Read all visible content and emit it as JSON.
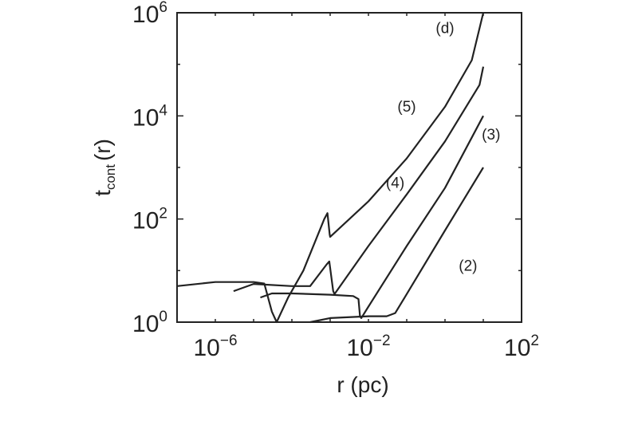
{
  "chart_data": {
    "type": "line",
    "xscale": "log",
    "yscale": "log",
    "xlim": [
      1e-07,
      100
    ],
    "ylim": [
      1,
      1000000
    ],
    "xlabel": "r (pc)",
    "ylabel": {
      "main": "t",
      "sub": "cont",
      "tail": "(r)"
    },
    "x_ticks": [
      {
        "base": "10",
        "exp": "−6",
        "value": 1e-06
      },
      {
        "base": "10",
        "exp": "−2",
        "value": 0.01
      },
      {
        "base": "10",
        "exp": "2",
        "value": 100
      }
    ],
    "y_ticks": [
      {
        "base": "10",
        "exp": "0",
        "value": 1
      },
      {
        "base": "10",
        "exp": "2",
        "value": 100
      },
      {
        "base": "10",
        "exp": "4",
        "value": 10000
      },
      {
        "base": "10",
        "exp": "6",
        "value": 1000000
      }
    ],
    "grid": false,
    "series": [
      {
        "name": "(d)",
        "label_at": [
          1,
          400000
        ],
        "points": [
          [
            1e-07,
            5.0
          ],
          [
            1e-06,
            6.0
          ],
          [
            1e-05,
            6.0
          ],
          [
            1.9e-05,
            5.6
          ],
          [
            3e-05,
            1.6
          ],
          [
            4e-05,
            1.0
          ],
          [
            8e-05,
            3.0
          ],
          [
            0.0002,
            10
          ],
          [
            0.0007,
            100
          ],
          [
            0.00085,
            130
          ],
          [
            0.00097,
            50
          ],
          [
            0.001,
            45
          ],
          [
            0.01,
            220
          ],
          [
            0.1,
            1500
          ],
          [
            1,
            15000
          ],
          [
            5,
            120000
          ],
          [
            10,
            1000000
          ]
        ]
      },
      {
        "name": "(5)",
        "label_at": [
          0.1,
          12000
        ],
        "points": [
          [
            3e-06,
            4.0
          ],
          [
            1e-05,
            5.5
          ],
          [
            0.0001,
            5.0
          ],
          [
            0.0003,
            5.0
          ],
          [
            0.0008,
            13
          ],
          [
            0.00095,
            15
          ],
          [
            0.0012,
            4.0
          ],
          [
            0.0013,
            3.5
          ],
          [
            0.01,
            30
          ],
          [
            0.1,
            300
          ],
          [
            1,
            3200
          ],
          [
            8,
            40000
          ],
          [
            10,
            90000
          ]
        ]
      },
      {
        "name": "(4)",
        "label_at": [
          0.05,
          400
        ],
        "points": [
          [
            1.5e-05,
            3.0
          ],
          [
            3e-05,
            3.6
          ],
          [
            0.0001,
            3.6
          ],
          [
            0.001,
            3.4
          ],
          [
            0.004,
            3.2
          ],
          [
            0.0055,
            2.8
          ],
          [
            0.006,
            1.3
          ],
          [
            0.0065,
            1.2
          ],
          [
            0.01,
            2.0
          ],
          [
            0.1,
            30
          ],
          [
            1,
            400
          ],
          [
            10,
            10000
          ]
        ]
      },
      {
        "name": "(3)",
        "label_at": [
          16,
          3500
        ],
        "points": [
          [
            0.0003,
            1.0
          ],
          [
            0.001,
            1.2
          ],
          [
            0.01,
            1.3
          ],
          [
            0.03,
            1.3
          ],
          [
            0.05,
            1.5
          ],
          [
            0.1,
            3.5
          ],
          [
            1,
            60
          ],
          [
            10,
            1000
          ]
        ]
      },
      {
        "name": "(2)",
        "label_at": [
          4,
          10
        ],
        "points": []
      }
    ]
  }
}
